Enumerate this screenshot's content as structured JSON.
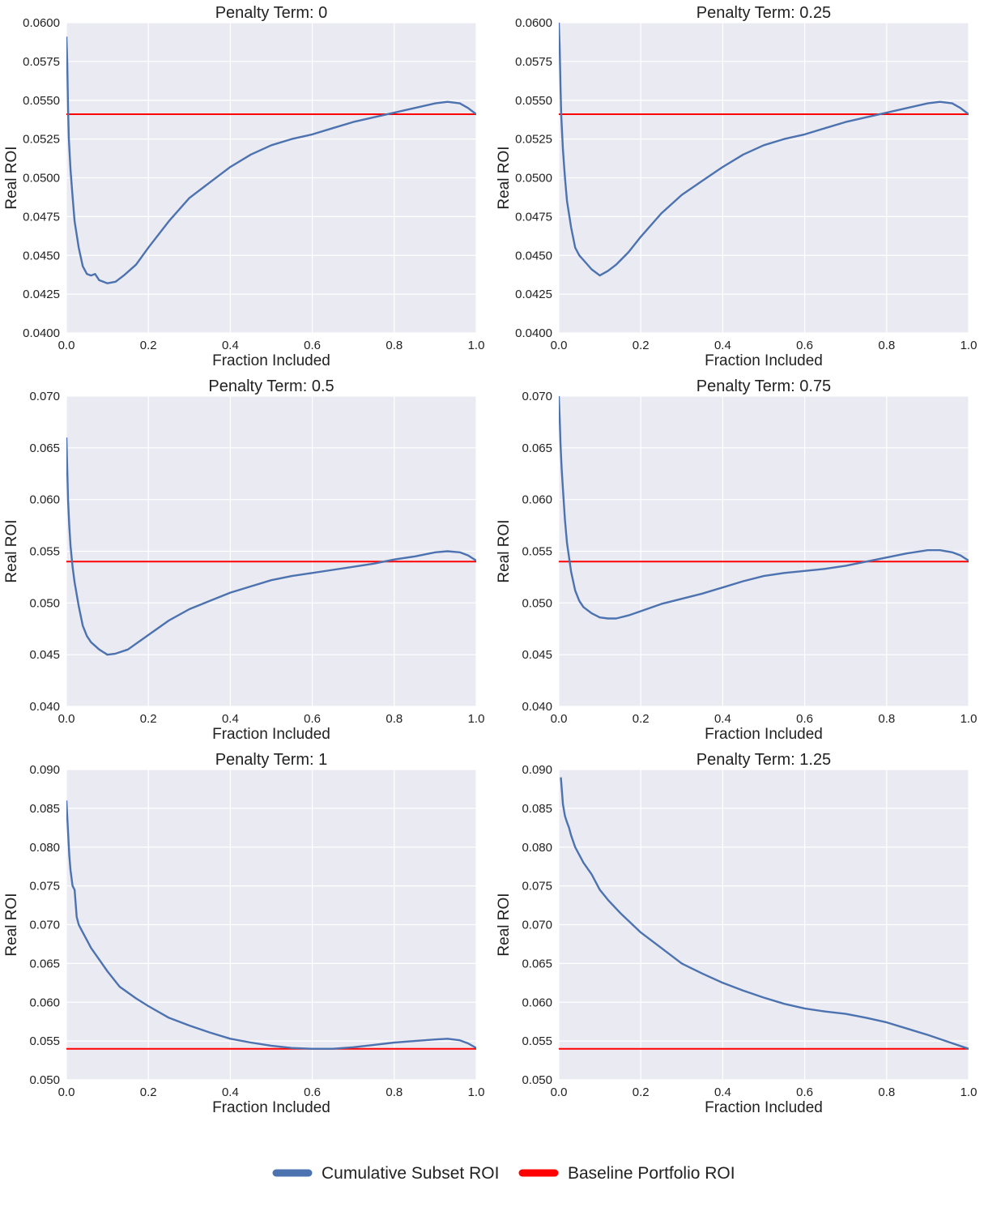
{
  "legend": {
    "items": [
      {
        "label": "Cumulative Subset ROI",
        "color": "#4c72b0"
      },
      {
        "label": "Baseline Portfolio ROI",
        "color": "#ff0000"
      }
    ]
  },
  "colors": {
    "background": "#eaeaf2",
    "grid": "#ffffff",
    "series": "#4c72b0",
    "baseline": "#ff0000"
  },
  "chart_data": [
    {
      "type": "line",
      "title": "Penalty Term: 0",
      "xlabel": "Fraction Included",
      "ylabel": "Real ROI",
      "xlim": [
        0.0,
        1.0
      ],
      "ylim": [
        0.04,
        0.06
      ],
      "xticks": [
        "0.0",
        "0.2",
        "0.4",
        "0.6",
        "0.8",
        "1.0"
      ],
      "yticks": [
        "0.0400",
        "0.0425",
        "0.0450",
        "0.0475",
        "0.0500",
        "0.0525",
        "0.0550",
        "0.0575",
        "0.0600"
      ],
      "baseline": 0.0541,
      "series": [
        {
          "name": "Cumulative Subset ROI",
          "x": [
            0,
            0.002,
            0.004,
            0.006,
            0.01,
            0.015,
            0.02,
            0.03,
            0.04,
            0.05,
            0.06,
            0.07,
            0.08,
            0.1,
            0.12,
            0.14,
            0.17,
            0.2,
            0.25,
            0.3,
            0.35,
            0.4,
            0.45,
            0.5,
            0.55,
            0.6,
            0.65,
            0.7,
            0.75,
            0.8,
            0.85,
            0.9,
            0.93,
            0.96,
            0.98,
            1.0
          ],
          "y": [
            0.0591,
            0.0575,
            0.0545,
            0.0525,
            0.0505,
            0.0488,
            0.0472,
            0.0455,
            0.0443,
            0.0438,
            0.0437,
            0.0438,
            0.0434,
            0.0432,
            0.0433,
            0.0437,
            0.0444,
            0.0455,
            0.0472,
            0.0487,
            0.0497,
            0.0507,
            0.0515,
            0.0521,
            0.0525,
            0.0528,
            0.0532,
            0.0536,
            0.0539,
            0.0542,
            0.0545,
            0.0548,
            0.0549,
            0.0548,
            0.0545,
            0.0541
          ]
        }
      ]
    },
    {
      "type": "line",
      "title": "Penalty Term: 0.25",
      "xlabel": "Fraction Included",
      "ylabel": "Real ROI",
      "xlim": [
        0.0,
        1.0
      ],
      "ylim": [
        0.04,
        0.06
      ],
      "xticks": [
        "0.0",
        "0.2",
        "0.4",
        "0.6",
        "0.8",
        "1.0"
      ],
      "yticks": [
        "0.0400",
        "0.0425",
        "0.0450",
        "0.0475",
        "0.0500",
        "0.0525",
        "0.0550",
        "0.0575",
        "0.0600"
      ],
      "baseline": 0.0541,
      "series": [
        {
          "name": "Cumulative Subset ROI",
          "x": [
            0,
            0.002,
            0.004,
            0.006,
            0.01,
            0.015,
            0.02,
            0.03,
            0.04,
            0.05,
            0.06,
            0.08,
            0.1,
            0.12,
            0.14,
            0.17,
            0.2,
            0.25,
            0.3,
            0.35,
            0.4,
            0.45,
            0.5,
            0.55,
            0.6,
            0.65,
            0.7,
            0.75,
            0.8,
            0.85,
            0.9,
            0.93,
            0.96,
            0.98,
            1.0
          ],
          "y": [
            0.06,
            0.0585,
            0.056,
            0.054,
            0.0518,
            0.05,
            0.0485,
            0.0468,
            0.0455,
            0.045,
            0.0447,
            0.0441,
            0.0437,
            0.044,
            0.0444,
            0.0452,
            0.0462,
            0.0477,
            0.0489,
            0.0498,
            0.0507,
            0.0515,
            0.0521,
            0.0525,
            0.0528,
            0.0532,
            0.0536,
            0.0539,
            0.0542,
            0.0545,
            0.0548,
            0.0549,
            0.0548,
            0.0545,
            0.0541
          ]
        }
      ]
    },
    {
      "type": "line",
      "title": "Penalty Term: 0.5",
      "xlabel": "Fraction Included",
      "ylabel": "Real ROI",
      "xlim": [
        0.0,
        1.0
      ],
      "ylim": [
        0.04,
        0.07
      ],
      "xticks": [
        "0.0",
        "0.2",
        "0.4",
        "0.6",
        "0.8",
        "1.0"
      ],
      "yticks": [
        "0.040",
        "0.045",
        "0.050",
        "0.055",
        "0.060",
        "0.065",
        "0.070"
      ],
      "baseline": 0.054,
      "series": [
        {
          "name": "Cumulative Subset ROI",
          "x": [
            0,
            0.002,
            0.004,
            0.007,
            0.01,
            0.015,
            0.02,
            0.03,
            0.04,
            0.05,
            0.06,
            0.08,
            0.1,
            0.12,
            0.15,
            0.2,
            0.25,
            0.3,
            0.35,
            0.4,
            0.45,
            0.5,
            0.55,
            0.6,
            0.65,
            0.7,
            0.75,
            0.8,
            0.85,
            0.9,
            0.93,
            0.96,
            0.98,
            1.0
          ],
          "y": [
            0.066,
            0.063,
            0.06,
            0.0575,
            0.0555,
            0.0535,
            0.052,
            0.0497,
            0.0478,
            0.0468,
            0.0462,
            0.0455,
            0.045,
            0.0451,
            0.0455,
            0.0469,
            0.0483,
            0.0494,
            0.0502,
            0.051,
            0.0516,
            0.0522,
            0.0526,
            0.0529,
            0.0532,
            0.0535,
            0.0538,
            0.0542,
            0.0545,
            0.0549,
            0.055,
            0.0549,
            0.0546,
            0.0541
          ]
        }
      ]
    },
    {
      "type": "line",
      "title": "Penalty Term: 0.75",
      "xlabel": "Fraction Included",
      "ylabel": "Real ROI",
      "xlim": [
        0.0,
        1.0
      ],
      "ylim": [
        0.04,
        0.07
      ],
      "xticks": [
        "0.0",
        "0.2",
        "0.4",
        "0.6",
        "0.8",
        "1.0"
      ],
      "yticks": [
        "0.040",
        "0.045",
        "0.050",
        "0.055",
        "0.060",
        "0.065",
        "0.070"
      ],
      "baseline": 0.054,
      "series": [
        {
          "name": "Cumulative Subset ROI",
          "x": [
            0,
            0.002,
            0.004,
            0.007,
            0.01,
            0.015,
            0.02,
            0.03,
            0.04,
            0.05,
            0.06,
            0.08,
            0.1,
            0.12,
            0.14,
            0.17,
            0.2,
            0.25,
            0.3,
            0.35,
            0.4,
            0.45,
            0.5,
            0.55,
            0.6,
            0.65,
            0.7,
            0.75,
            0.8,
            0.85,
            0.9,
            0.93,
            0.96,
            0.98,
            1.0
          ],
          "y": [
            0.07,
            0.068,
            0.0655,
            0.063,
            0.061,
            0.058,
            0.0558,
            0.053,
            0.0512,
            0.0502,
            0.0496,
            0.049,
            0.0486,
            0.0485,
            0.0485,
            0.0488,
            0.0492,
            0.0499,
            0.0504,
            0.0509,
            0.0515,
            0.0521,
            0.0526,
            0.0529,
            0.0531,
            0.0533,
            0.0536,
            0.054,
            0.0544,
            0.0548,
            0.0551,
            0.0551,
            0.0549,
            0.0546,
            0.0541
          ]
        }
      ]
    },
    {
      "type": "line",
      "title": "Penalty Term: 1",
      "xlabel": "Fraction Included",
      "ylabel": "Real ROI",
      "xlim": [
        0.0,
        1.0
      ],
      "ylim": [
        0.05,
        0.09
      ],
      "xticks": [
        "0.0",
        "0.2",
        "0.4",
        "0.6",
        "0.8",
        "1.0"
      ],
      "yticks": [
        "0.050",
        "0.055",
        "0.060",
        "0.065",
        "0.070",
        "0.075",
        "0.080",
        "0.085",
        "0.090"
      ],
      "baseline": 0.054,
      "series": [
        {
          "name": "Cumulative Subset ROI",
          "x": [
            0,
            0.002,
            0.004,
            0.007,
            0.01,
            0.015,
            0.02,
            0.025,
            0.03,
            0.04,
            0.05,
            0.06,
            0.08,
            0.1,
            0.13,
            0.17,
            0.2,
            0.25,
            0.3,
            0.35,
            0.4,
            0.45,
            0.5,
            0.55,
            0.6,
            0.65,
            0.7,
            0.75,
            0.8,
            0.85,
            0.9,
            0.93,
            0.96,
            0.98,
            1.0
          ],
          "y": [
            0.086,
            0.084,
            0.082,
            0.079,
            0.077,
            0.075,
            0.0745,
            0.071,
            0.07,
            0.069,
            0.068,
            0.067,
            0.0655,
            0.064,
            0.062,
            0.0605,
            0.0595,
            0.058,
            0.057,
            0.0561,
            0.0553,
            0.0548,
            0.0544,
            0.0541,
            0.054,
            0.054,
            0.0542,
            0.0545,
            0.0548,
            0.055,
            0.0552,
            0.0553,
            0.0551,
            0.0547,
            0.0541
          ]
        }
      ]
    },
    {
      "type": "line",
      "title": "Penalty Term: 1.25",
      "xlabel": "Fraction Included",
      "ylabel": "Real ROI",
      "xlim": [
        0.0,
        1.0
      ],
      "ylim": [
        0.05,
        0.09
      ],
      "xticks": [
        "0.0",
        "0.2",
        "0.4",
        "0.6",
        "0.8",
        "1.0"
      ],
      "yticks": [
        "0.050",
        "0.055",
        "0.060",
        "0.065",
        "0.070",
        "0.075",
        "0.080",
        "0.085",
        "0.090"
      ],
      "baseline": 0.054,
      "series": [
        {
          "name": "Cumulative Subset ROI",
          "x": [
            0.005,
            0.008,
            0.01,
            0.015,
            0.02,
            0.025,
            0.03,
            0.04,
            0.05,
            0.06,
            0.08,
            0.1,
            0.12,
            0.15,
            0.2,
            0.25,
            0.3,
            0.35,
            0.4,
            0.45,
            0.5,
            0.55,
            0.6,
            0.65,
            0.7,
            0.75,
            0.8,
            0.85,
            0.9,
            0.95,
            1.0
          ],
          "y": [
            0.089,
            0.087,
            0.0855,
            0.084,
            0.0832,
            0.0825,
            0.0815,
            0.08,
            0.079,
            0.078,
            0.0765,
            0.0745,
            0.0732,
            0.0715,
            0.069,
            0.067,
            0.065,
            0.0637,
            0.0625,
            0.0615,
            0.0606,
            0.0598,
            0.0592,
            0.0588,
            0.0585,
            0.058,
            0.0574,
            0.0566,
            0.0558,
            0.0549,
            0.054
          ]
        }
      ]
    }
  ]
}
